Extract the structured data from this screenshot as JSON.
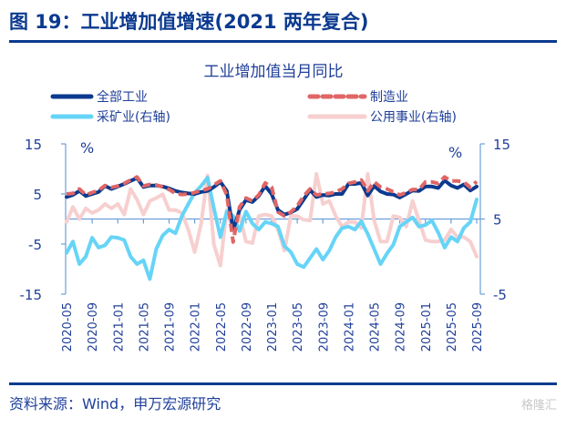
{
  "figure": {
    "title": "图 19：工业增加值增速(2021 两年复合)",
    "source": "资料来源：Wind，申万宏源研究",
    "watermark": "格隆汇"
  },
  "chart_data": {
    "type": "line",
    "title": "工业增加值当月同比",
    "left_unit": "%",
    "right_unit": "%",
    "left_axis": {
      "ylim": [
        -15,
        15
      ],
      "ticks": [
        "15",
        "5",
        "-5",
        "-15"
      ],
      "tick_values": [
        15,
        5,
        -5,
        -15
      ]
    },
    "right_axis": {
      "ylim": [
        -5,
        15
      ],
      "ticks": [
        "15",
        "5",
        "-5"
      ],
      "tick_values": [
        15,
        5,
        -5
      ]
    },
    "x_start": "2020-05",
    "x_tick_labels": [
      "2020-05",
      "2020-09",
      "2021-01",
      "2021-05",
      "2021-09",
      "2022-01",
      "2022-05",
      "2022-09",
      "2023-01",
      "2023-05",
      "2023-09",
      "2024-01",
      "2024-05",
      "2024-09",
      "2025-01",
      "2025-05",
      "2025-09"
    ],
    "legend": "top",
    "series": [
      {
        "name": "全部工业",
        "axis": "left",
        "color": "#0b3a8f",
        "style": "solid",
        "values": [
          4.4,
          4.8,
          5.6,
          4.6,
          5.0,
          5.4,
          6.6,
          6.0,
          6.5,
          7.0,
          7.6,
          8.2,
          6.4,
          6.7,
          6.7,
          6.5,
          6.1,
          5.6,
          5.3,
          5.1,
          5.0,
          5.4,
          5.6,
          6.4,
          7.4,
          5.6,
          -2.2,
          1.8,
          3.8,
          3.4,
          4.6,
          6.6,
          5.0,
          1.8,
          0.9,
          1.3,
          2.0,
          3.9,
          5.8,
          4.4,
          4.8,
          4.7,
          5.0,
          5.0,
          7.0,
          7.0,
          7.2,
          4.7,
          6.6,
          5.5,
          5.0,
          4.9,
          4.3,
          5.0,
          5.7,
          5.6,
          6.5,
          6.5,
          6.2,
          7.7,
          6.7,
          6.2,
          6.9,
          5.7,
          6.5
        ]
      },
      {
        "name": "制造业",
        "axis": "left",
        "color": "#e06666",
        "style": "dashed",
        "values": [
          5.0,
          5.1,
          6.0,
          4.8,
          5.3,
          5.7,
          6.7,
          6.3,
          6.6,
          7.1,
          7.8,
          8.4,
          6.6,
          6.9,
          6.8,
          6.4,
          5.9,
          5.1,
          4.9,
          5.0,
          5.3,
          5.7,
          6.0,
          6.8,
          7.6,
          4.8,
          -4.6,
          2.4,
          4.2,
          3.6,
          4.8,
          7.2,
          6.4,
          1.4,
          0.6,
          1.4,
          2.6,
          4.6,
          6.0,
          4.8,
          5.0,
          5.1,
          5.4,
          6.0,
          7.1,
          7.4,
          7.8,
          5.6,
          7.4,
          6.4,
          6.0,
          5.4,
          4.8,
          5.3,
          5.9,
          5.9,
          7.4,
          7.4,
          7.1,
          8.4,
          7.6,
          7.6,
          7.4,
          6.3,
          7.5
        ]
      },
      {
        "name": "采矿业(右轴)",
        "axis": "right",
        "color": "#66d4f7",
        "style": "solid",
        "values": [
          0.5,
          2.0,
          -1.0,
          0.0,
          2.5,
          1.2,
          1.5,
          2.6,
          2.5,
          2.2,
          0.0,
          -1.0,
          -0.5,
          -3.0,
          1.0,
          2.8,
          3.6,
          3.1,
          5.4,
          7.0,
          8.5,
          9.4,
          10.5,
          6.4,
          2.6,
          6.0,
          5.4,
          3.4,
          6.0,
          4.4,
          3.6,
          4.6,
          4.4,
          4.0,
          1.4,
          0.6,
          -1.0,
          -1.4,
          -0.2,
          1.0,
          -0.4,
          0.8,
          2.6,
          3.8,
          4.0,
          3.6,
          4.7,
          3.0,
          1.0,
          -1.0,
          0.4,
          1.6,
          4.0,
          4.6,
          5.2,
          4.0,
          4.2,
          4.8,
          3.2,
          1.2,
          2.6,
          2.0,
          3.8,
          4.6,
          7.6
        ]
      },
      {
        "name": "公用事业(右轴)",
        "axis": "right",
        "color": "#f7cfcf",
        "style": "solid",
        "values": [
          4.6,
          6.6,
          5.0,
          6.4,
          5.8,
          6.2,
          7.0,
          6.4,
          7.0,
          5.6,
          9.0,
          7.6,
          5.6,
          7.4,
          7.8,
          8.3,
          6.2,
          6.2,
          5.8,
          3.6,
          0.6,
          4.4,
          10.8,
          1.6,
          -1.2,
          6.2,
          3.4,
          5.6,
          2.0,
          1.8,
          5.4,
          5.6,
          5.4,
          3.6,
          0.8,
          5.4,
          5.4,
          4.9,
          4.8,
          11.0,
          7.0,
          7.4,
          5.4,
          4.0,
          4.6,
          4.6,
          3.8,
          11.0,
          4.8,
          2.0,
          2.0,
          5.4,
          5.2,
          4.0,
          7.4,
          4.8,
          2.2,
          2.0,
          2.0,
          2.2,
          3.6,
          2.6,
          2.6,
          2.0,
          0.0
        ]
      }
    ]
  }
}
